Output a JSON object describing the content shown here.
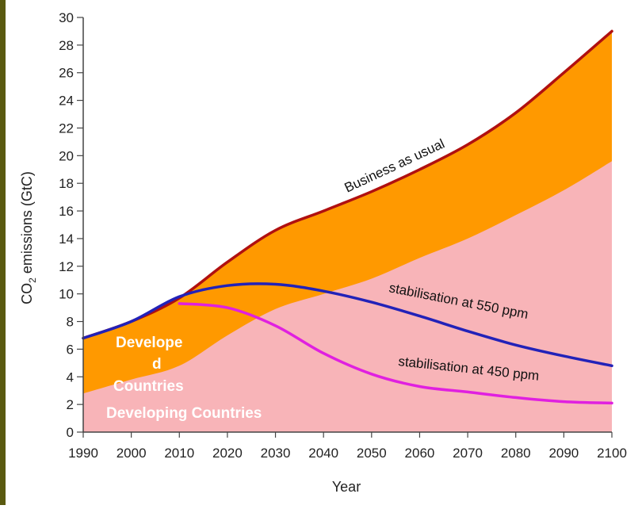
{
  "chart_data": {
    "type": "area",
    "xlabel": "Year",
    "ylabel": "CO2 emissions (GtC)",
    "xlim": [
      1990,
      2100
    ],
    "ylim": [
      0,
      30
    ],
    "xticks": [
      1990,
      2000,
      2010,
      2020,
      2030,
      2040,
      2050,
      2060,
      2070,
      2080,
      2090,
      2100
    ],
    "yticks": [
      0,
      2,
      4,
      6,
      8,
      10,
      12,
      14,
      16,
      18,
      20,
      22,
      24,
      26,
      28,
      30
    ],
    "x": [
      1990,
      2000,
      2010,
      2020,
      2030,
      2040,
      2050,
      2060,
      2070,
      2080,
      2090,
      2100
    ],
    "series": [
      {
        "name": "Business as usual",
        "role": "line",
        "color": "#b01010",
        "values": [
          6.8,
          8.0,
          9.7,
          12.3,
          14.6,
          16.0,
          17.4,
          19.0,
          20.8,
          23.1,
          26.0,
          29.0
        ]
      },
      {
        "name": "stabilisation at 550 ppm",
        "role": "line",
        "color": "#2222b8",
        "values": [
          6.8,
          8.0,
          9.8,
          10.6,
          10.7,
          10.2,
          9.4,
          8.4,
          7.3,
          6.3,
          5.5,
          4.8
        ]
      },
      {
        "name": "stabilisation at 450 ppm",
        "role": "line",
        "color": "#e020e0",
        "values": [
          null,
          null,
          9.3,
          9.0,
          7.7,
          5.7,
          4.2,
          3.3,
          2.9,
          2.5,
          2.2,
          2.1
        ]
      },
      {
        "name": "Developed Countries",
        "role": "area-boundary",
        "color": "#f8b4b8",
        "values": [
          2.8,
          3.8,
          4.8,
          7.0,
          8.9,
          10.0,
          11.1,
          12.6,
          14.0,
          15.7,
          17.5,
          19.6
        ]
      }
    ],
    "colors": {
      "orange_band": "#ff9900",
      "pink_band": "#f8b4b8",
      "background": "#ffffff",
      "axis": "#444444",
      "left_bar": "#5a5a10"
    },
    "curve_labels": {
      "bau": "Business as usual",
      "s550": "stabilisation at 550 ppm",
      "s450": "stabilisation at 450 ppm"
    },
    "region_labels": {
      "developed_1": "Develope",
      "developed_2": "d",
      "developed_3": "Countries",
      "developing": "Developing Countries"
    },
    "grid": false,
    "legend": "none"
  }
}
